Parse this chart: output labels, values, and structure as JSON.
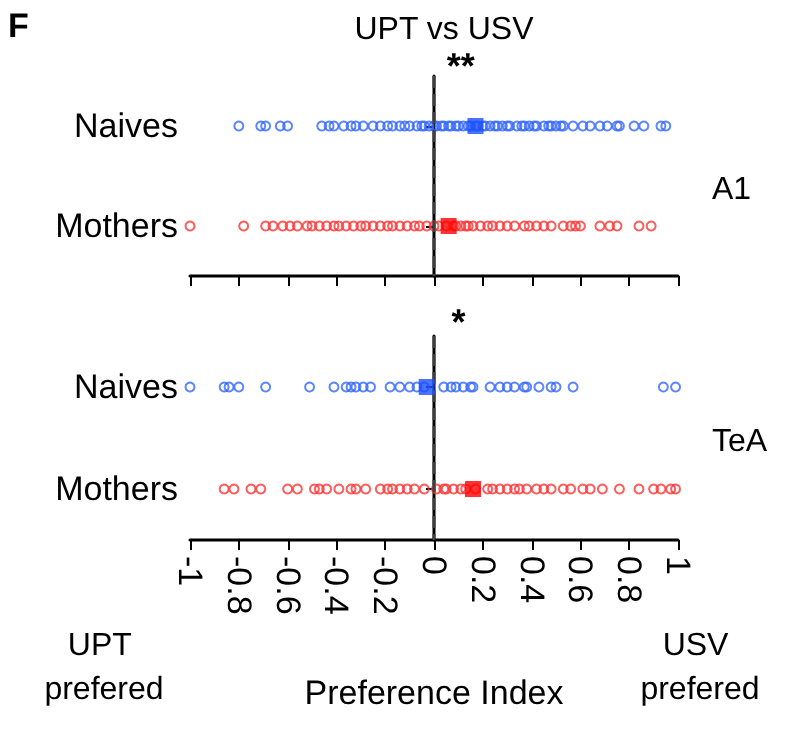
{
  "chart_data": [
    {
      "type": "scatter",
      "orientation": "horizontal",
      "title": "UPT vs USV",
      "categories": [
        "Naives",
        "Mothers"
      ],
      "xlim": [
        -1,
        1
      ],
      "xticks": [
        -1,
        -0.8,
        -0.6,
        -0.4,
        -0.2,
        0,
        0.2,
        0.4,
        0.6,
        0.8,
        1
      ],
      "tick_labels": "y",
      "grid": false,
      "annotations": [
        "F",
        "**",
        "A1"
      ],
      "ref_lines": [
        {
          "axis": "x",
          "value": 0,
          "color": "#404040",
          "line_style": "dashed"
        }
      ],
      "series": [
        {
          "marker": "circle",
          "color": "#3366ff",
          "x": [
            "Naives",
            "Naives",
            "Naives",
            "Naives",
            "Naives",
            "Naives",
            "Naives",
            "Naives",
            "Naives",
            "Naives",
            "Naives",
            "Naives",
            "Naives",
            "Naives",
            "Naives",
            "Naives",
            "Naives",
            "Naives",
            "Naives",
            "Naives",
            "Naives",
            "Naives",
            "Naives",
            "Naives",
            "Naives",
            "Naives",
            "Naives",
            "Naives",
            "Naives",
            "Naives",
            "Naives",
            "Naives",
            "Naives",
            "Naives",
            "Naives",
            "Naives",
            "Naives",
            "Naives",
            "Naives",
            "Naives",
            "Naives",
            "Naives",
            "Naives",
            "Naives",
            "Naives",
            "Naives",
            "Naives",
            "Naives",
            "Naives",
            "Naives",
            "Naives",
            "Naives",
            "Naives",
            "Naives",
            "Naives",
            "Naives",
            "Naives",
            "Naives",
            "Naives",
            "Naives",
            "Naives",
            "Naives",
            "Naives",
            "Naives",
            "Naives",
            "Naives",
            "Naives"
          ],
          "values": [
            -0.8,
            -0.71,
            -0.69,
            -0.63,
            -0.6,
            -0.46,
            -0.43,
            -0.41,
            -0.37,
            -0.34,
            -0.32,
            -0.29,
            -0.25,
            -0.22,
            -0.19,
            -0.17,
            -0.14,
            -0.1,
            -0.07,
            -0.04,
            -0.02,
            0.01,
            0.04,
            0.07,
            0.09,
            0.12,
            0.15,
            0.17,
            0.2,
            0.23,
            0.26,
            0.28,
            0.31,
            0.34,
            0.37,
            0.39,
            0.42,
            0.45,
            0.48,
            0.5,
            0.53,
            0.57,
            0.61,
            0.64,
            0.68,
            0.71,
            0.75,
            0.76,
            0.82,
            0.86,
            0.93,
            0.95,
            -0.12,
            -0.05,
            0.0,
            0.03,
            0.06,
            0.1,
            0.14,
            0.18,
            0.21,
            0.25,
            0.3,
            0.36,
            0.41,
            0.47,
            0.52
          ]
        },
        {
          "marker": "circle",
          "color": "#ff3333",
          "x": [
            "Mothers",
            "Mothers",
            "Mothers",
            "Mothers",
            "Mothers",
            "Mothers",
            "Mothers",
            "Mothers",
            "Mothers",
            "Mothers",
            "Mothers",
            "Mothers",
            "Mothers",
            "Mothers",
            "Mothers",
            "Mothers",
            "Mothers",
            "Mothers",
            "Mothers",
            "Mothers",
            "Mothers",
            "Mothers",
            "Mothers",
            "Mothers",
            "Mothers",
            "Mothers",
            "Mothers",
            "Mothers",
            "Mothers",
            "Mothers",
            "Mothers",
            "Mothers",
            "Mothers",
            "Mothers",
            "Mothers",
            "Mothers",
            "Mothers",
            "Mothers",
            "Mothers",
            "Mothers",
            "Mothers",
            "Mothers",
            "Mothers",
            "Mothers",
            "Mothers",
            "Mothers",
            "Mothers",
            "Mothers",
            "Mothers",
            "Mothers",
            "Mothers",
            "Mothers",
            "Mothers",
            "Mothers",
            "Mothers"
          ],
          "values": [
            -1.0,
            -0.78,
            -0.69,
            -0.66,
            -0.62,
            -0.59,
            -0.56,
            -0.52,
            -0.5,
            -0.47,
            -0.44,
            -0.41,
            -0.39,
            -0.36,
            -0.33,
            -0.3,
            -0.28,
            -0.25,
            -0.22,
            -0.19,
            -0.17,
            -0.14,
            -0.11,
            -0.08,
            -0.06,
            -0.03,
            0.0,
            0.02,
            0.05,
            0.08,
            0.11,
            0.13,
            0.16,
            0.19,
            0.22,
            0.24,
            0.27,
            0.3,
            0.33,
            0.37,
            0.39,
            0.42,
            0.45,
            0.48,
            0.53,
            0.56,
            0.58,
            0.6,
            0.68,
            0.72,
            0.75,
            0.84,
            0.89,
            0.09,
            0.14
          ]
        },
        {
          "marker": "square",
          "colors": [
            "#1a4fff",
            "#ff0000"
          ],
          "x": [
            "Naives",
            "Mothers"
          ],
          "values": [
            0.17,
            0.06
          ]
        }
      ]
    },
    {
      "type": "scatter",
      "orientation": "horizontal",
      "xlabel": "Preference Index",
      "categories": [
        "Naives",
        "Mothers"
      ],
      "xlim": [
        -1,
        1
      ],
      "xticks": [
        -1,
        -0.8,
        -0.6,
        -0.4,
        -0.2,
        0,
        0.2,
        0.4,
        0.6,
        0.8,
        1
      ],
      "grid": false,
      "annotations": [
        "*",
        "TeA",
        "UPT prefered",
        "USV prefered"
      ],
      "ref_lines": [
        {
          "axis": "x",
          "value": 0,
          "color": "#404040",
          "line_style": "dashed"
        }
      ],
      "series": [
        {
          "marker": "circle",
          "color": "#3366ff",
          "x": [
            "Naives",
            "Naives",
            "Naives",
            "Naives",
            "Naives",
            "Naives",
            "Naives",
            "Naives",
            "Naives",
            "Naives",
            "Naives",
            "Naives",
            "Naives",
            "Naives",
            "Naives",
            "Naives",
            "Naives",
            "Naives",
            "Naives",
            "Naives",
            "Naives",
            "Naives",
            "Naives",
            "Naives",
            "Naives",
            "Naives",
            "Naives",
            "Naives",
            "Naives",
            "Naives",
            "Naives",
            "Naives",
            "Naives",
            "Naives",
            "Naives"
          ],
          "values": [
            -1.0,
            -0.86,
            -0.84,
            -0.8,
            -0.69,
            -0.51,
            -0.41,
            -0.36,
            -0.34,
            -0.32,
            -0.29,
            -0.26,
            -0.18,
            -0.14,
            -0.1,
            -0.07,
            -0.04,
            0.04,
            0.07,
            0.09,
            0.12,
            0.15,
            0.16,
            0.23,
            0.27,
            0.3,
            0.33,
            0.37,
            0.38,
            0.43,
            0.48,
            0.5,
            0.57,
            0.94,
            0.99
          ]
        },
        {
          "marker": "circle",
          "color": "#ff3333",
          "x": [
            "Mothers",
            "Mothers",
            "Mothers",
            "Mothers",
            "Mothers",
            "Mothers",
            "Mothers",
            "Mothers",
            "Mothers",
            "Mothers",
            "Mothers",
            "Mothers",
            "Mothers",
            "Mothers",
            "Mothers",
            "Mothers",
            "Mothers",
            "Mothers",
            "Mothers",
            "Mothers",
            "Mothers",
            "Mothers",
            "Mothers",
            "Mothers",
            "Mothers",
            "Mothers",
            "Mothers",
            "Mothers",
            "Mothers",
            "Mothers",
            "Mothers",
            "Mothers",
            "Mothers",
            "Mothers",
            "Mothers",
            "Mothers",
            "Mothers",
            "Mothers",
            "Mothers",
            "Mothers",
            "Mothers",
            "Mothers",
            "Mothers",
            "Mothers",
            "Mothers",
            "Mothers",
            "Mothers",
            "Mothers"
          ],
          "values": [
            -0.86,
            -0.82,
            -0.75,
            -0.71,
            -0.6,
            -0.56,
            -0.49,
            -0.47,
            -0.44,
            -0.39,
            -0.34,
            -0.32,
            -0.28,
            -0.22,
            -0.19,
            -0.17,
            -0.14,
            -0.11,
            -0.08,
            -0.04,
            0.01,
            0.04,
            0.05,
            0.08,
            0.11,
            0.13,
            0.17,
            0.22,
            0.24,
            0.27,
            0.3,
            0.33,
            0.35,
            0.38,
            0.42,
            0.45,
            0.48,
            0.53,
            0.56,
            0.61,
            0.64,
            0.69,
            0.76,
            0.84,
            0.9,
            0.93,
            0.97,
            0.99
          ]
        },
        {
          "marker": "square",
          "colors": [
            "#1a4fff",
            "#ff0000"
          ],
          "x": [
            "Naives",
            "Mothers"
          ],
          "values": [
            -0.03,
            0.16
          ]
        }
      ]
    }
  ]
}
